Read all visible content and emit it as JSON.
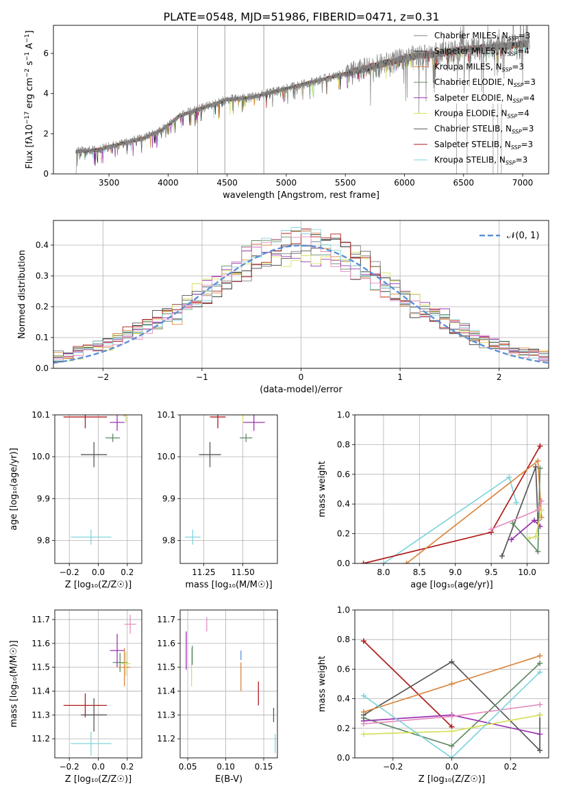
{
  "figure_title": "PLATE=0548, MJD=51986, FIBERID=0471, z=0.31",
  "colors": {
    "Chabrier MILES": "#7f7f7f",
    "Salpeter MILES": "#222222",
    "Kroupa MILES": "#d9843b",
    "Chabrier ELODIE": "#5f8a63",
    "Salpeter ELODIE": "#9b30b0",
    "Kroupa ELODIE": "#d6e05a",
    "Chabrier STELIB": "#555555",
    "Salpeter STELIB": "#b01818",
    "Kroupa STELIB": "#7fd4dc",
    "pink": "#e58cc0",
    "gaussian": "#5b8fd6"
  },
  "chart_data": [
    {
      "type": "line",
      "xlabel": "wavelength [Angstrom, rest frame]",
      "ylabel": "Flux [f$_\\lambda$10$^{-17}$ erg cm$^{-2}$ s$^{-1}$ A$^{-1}$]",
      "ylabel_text": "Flux [fλ10",
      "ylabel_sup1": "−17",
      "ylabel_mid": " erg cm",
      "ylabel_sup2": "−2",
      "ylabel_mid2": " s",
      "ylabel_sup3": "−1",
      "ylabel_mid3": " A",
      "ylabel_sup4": "−1",
      "ylabel_end": "]",
      "xlim": [
        3030,
        7220
      ],
      "ylim": [
        0,
        7.4
      ],
      "xticks": [
        "3500",
        "4000",
        "4500",
        "5000",
        "5500",
        "6000",
        "6500",
        "7000"
      ],
      "xtick_values": [
        3500,
        4000,
        4500,
        5000,
        5500,
        6000,
        6500,
        7000
      ],
      "yticks": [
        "0",
        "2",
        "4",
        "6"
      ],
      "ytick_values": [
        0,
        2,
        4,
        6
      ],
      "continuum_x": [
        3220,
        3400,
        3600,
        3800,
        3950,
        4100,
        4300,
        4500,
        4700,
        4900,
        5100,
        5300,
        5500,
        5700,
        5900,
        6100,
        6300,
        6500,
        6700,
        6900,
        7050
      ],
      "continuum_y": [
        1.1,
        1.2,
        1.5,
        1.8,
        2.2,
        2.9,
        3.3,
        3.7,
        3.8,
        4.1,
        4.4,
        4.7,
        5.0,
        5.3,
        5.6,
        5.9,
        6.0,
        6.2,
        6.3,
        6.4,
        6.5
      ],
      "spikes_x": [
        4250,
        4480,
        4810
      ],
      "legend": [
        {
          "label": "Chabrier MILES, N",
          "sub": "SSP",
          "end": "=3",
          "color": "#7f7f7f"
        },
        {
          "label": "Salpeter MILES, N",
          "sub": "SSP",
          "end": "=4",
          "color": "#222222"
        },
        {
          "label": "Kroupa MILES, N",
          "sub": "SSP",
          "end": "=3",
          "color": "#d9843b"
        },
        {
          "label": "Chabrier ELODIE, N",
          "sub": "SSP",
          "end": "=3",
          "color": "#5f8a63"
        },
        {
          "label": "Salpeter ELODIE, N",
          "sub": "SSP",
          "end": "=4",
          "color": "#9b30b0"
        },
        {
          "label": "Kroupa ELODIE, N",
          "sub": "SSP",
          "end": "=4",
          "color": "#d6e05a"
        },
        {
          "label": "Chabrier STELIB, N",
          "sub": "SSP",
          "end": "=3",
          "color": "#555555"
        },
        {
          "label": "Salpeter STELIB, N",
          "sub": "SSP",
          "end": "=3",
          "color": "#b01818"
        },
        {
          "label": "Kroupa STELIB, N",
          "sub": "SSP",
          "end": "=3",
          "color": "#7fd4dc"
        }
      ]
    },
    {
      "type": "histogram",
      "xlabel": "(data-model)/error",
      "ylabel": "Normed distribution",
      "xlim": [
        -2.5,
        2.5
      ],
      "ylim": [
        0,
        0.48
      ],
      "xticks": [
        "−2",
        "−1",
        "0",
        "1",
        "2"
      ],
      "xtick_values": [
        -2,
        -1,
        0,
        1,
        2
      ],
      "yticks": [
        "0.0",
        "0.1",
        "0.2",
        "0.3",
        "0.4"
      ],
      "ytick_values": [
        0,
        0.1,
        0.2,
        0.3,
        0.4
      ],
      "bin_width": 0.1,
      "legend_label": "𝒩(0, 1)",
      "series_colors": [
        "#7f7f7f",
        "#222222",
        "#d9843b",
        "#5f8a63",
        "#9b30b0",
        "#d6e05a",
        "#555555",
        "#b01818",
        "#7fd4dc",
        "#e58cc0"
      ]
    },
    {
      "type": "scatter",
      "xlabel": "Z [log₁₀(Z/Z☉)]",
      "ylabel": "age  [log₁₀(age/yr)]",
      "xlim": [
        -0.3,
        0.3
      ],
      "ylim": [
        9.745,
        10.1
      ],
      "xticks": [
        "−0.2",
        "0.0",
        "0.2"
      ],
      "xtick_values": [
        -0.2,
        0,
        0.2
      ],
      "yticks": [
        "9.8",
        "9.9",
        "10.0",
        "10.1"
      ],
      "ytick_values": [
        9.8,
        9.9,
        10.0,
        10.1
      ],
      "points": [
        {
          "x": -0.09,
          "y": 10.095,
          "xerr": 0.15,
          "yerr": 0.027,
          "color": "#b01818"
        },
        {
          "x": -0.03,
          "y": 10.005,
          "xerr": 0.09,
          "yerr": 0.03,
          "color": "#555555"
        },
        {
          "x": -0.05,
          "y": 9.808,
          "xerr": 0.14,
          "yerr": 0.018,
          "color": "#7fd4dc"
        },
        {
          "x": 0.1,
          "y": 10.045,
          "xerr": 0.05,
          "yerr": 0.01,
          "color": "#5f8a63"
        },
        {
          "x": 0.13,
          "y": 10.082,
          "xerr": 0.05,
          "yerr": 0.02,
          "color": "#9b30b0"
        },
        {
          "x": 0.18,
          "y": 10.116,
          "xerr": 0.04,
          "yerr": 0.02,
          "color": "#d9843b"
        },
        {
          "x": 0.19,
          "y": 10.1,
          "xerr": 0.03,
          "yerr": 0.02,
          "color": "#d6e05a"
        },
        {
          "x": 0.22,
          "y": 10.148,
          "xerr": 0.04,
          "yerr": 0.01,
          "color": "#e58cc0"
        }
      ]
    },
    {
      "type": "scatter",
      "xlabel": "mass [log₁₀(M/M☉)]",
      "ylabel": "",
      "xlim": [
        11.1,
        11.72
      ],
      "ylim": [
        9.745,
        10.1
      ],
      "xticks": [
        "11.25",
        "11.50"
      ],
      "xtick_values": [
        11.25,
        11.5
      ],
      "yticks": [
        "9.8",
        "9.9",
        "10.0",
        "10.1"
      ],
      "ytick_values": [
        9.8,
        9.9,
        10.0,
        10.1
      ],
      "points": [
        {
          "x": 11.34,
          "y": 10.095,
          "xerr": 0.05,
          "yerr": 0.027,
          "color": "#b01818"
        },
        {
          "x": 11.29,
          "y": 10.005,
          "xerr": 0.07,
          "yerr": 0.03,
          "color": "#555555"
        },
        {
          "x": 11.18,
          "y": 9.808,
          "xerr": 0.05,
          "yerr": 0.018,
          "color": "#7fd4dc"
        },
        {
          "x": 11.52,
          "y": 10.045,
          "xerr": 0.04,
          "yerr": 0.01,
          "color": "#5f8a63"
        },
        {
          "x": 11.57,
          "y": 10.082,
          "xerr": 0.07,
          "yerr": 0.02,
          "color": "#9b30b0"
        },
        {
          "x": 11.5,
          "y": 10.116,
          "xerr": 0.08,
          "yerr": 0.02,
          "color": "#d9843b"
        },
        {
          "x": 11.5,
          "y": 10.1,
          "xerr": 0.05,
          "yerr": 0.02,
          "color": "#d6e05a"
        },
        {
          "x": 11.68,
          "y": 10.148,
          "xerr": 0.04,
          "yerr": 0.01,
          "color": "#e58cc0"
        }
      ]
    },
    {
      "type": "line",
      "xlabel": "age  [log₁₀(age/yr)]",
      "ylabel": "mass weight",
      "xlim": [
        7.6,
        10.3
      ],
      "ylim": [
        0,
        1
      ],
      "xticks": [
        "8.0",
        "8.5",
        "9.0",
        "9.5",
        "10.0"
      ],
      "xtick_values": [
        8,
        8.5,
        9,
        9.5,
        10
      ],
      "yticks": [
        "0.0",
        "0.2",
        "0.4",
        "0.6",
        "0.8",
        "1.0"
      ],
      "ytick_values": [
        0,
        0.2,
        0.4,
        0.6,
        0.8,
        1.0
      ],
      "series": [
        {
          "color": "#7fd4dc",
          "x": [
            8.0,
            9.75,
            9.85
          ],
          "y": [
            0.0,
            0.58,
            0.41
          ]
        },
        {
          "color": "#b01818",
          "x": [
            7.72,
            9.5,
            10.18
          ],
          "y": [
            0.0,
            0.21,
            0.79
          ]
        },
        {
          "color": "#555555",
          "x": [
            9.65,
            10.12,
            10.15
          ],
          "y": [
            0.05,
            0.65,
            0.29
          ]
        },
        {
          "color": "#d9843b",
          "x": [
            8.32,
            10.15,
            10.2
          ],
          "y": [
            0.0,
            0.69,
            0.31
          ]
        },
        {
          "color": "#5f8a63",
          "x": [
            9.8,
            10.15,
            10.18
          ],
          "y": [
            0.27,
            0.08,
            0.64
          ]
        },
        {
          "color": "#9b30b0",
          "x": [
            9.78,
            10.1,
            10.18
          ],
          "y": [
            0.16,
            0.29,
            0.25
          ]
        },
        {
          "color": "#d6e05a",
          "x": [
            10.03,
            10.12,
            10.2
          ],
          "y": [
            0.17,
            0.18,
            0.36
          ]
        },
        {
          "color": "#e58cc0",
          "x": [
            9.5,
            10.15,
            10.2
          ],
          "y": [
            0.23,
            0.36,
            0.42
          ]
        }
      ]
    },
    {
      "type": "scatter",
      "xlabel": "Z [log₁₀(Z/Z☉)]",
      "ylabel": "mass [log₁₀(M/M☉)]",
      "xlim": [
        -0.3,
        0.3
      ],
      "ylim": [
        11.12,
        11.74
      ],
      "xticks": [
        "−0.2",
        "0.0",
        "0.2"
      ],
      "xtick_values": [
        -0.2,
        0,
        0.2
      ],
      "yticks": [
        "11.2",
        "11.3",
        "11.4",
        "11.5",
        "11.6",
        "11.7"
      ],
      "ytick_values": [
        11.2,
        11.3,
        11.4,
        11.5,
        11.6,
        11.7
      ],
      "points": [
        {
          "x": -0.09,
          "y": 11.34,
          "xerr": 0.15,
          "yerr": 0.05,
          "color": "#b01818"
        },
        {
          "x": -0.03,
          "y": 11.3,
          "xerr": 0.09,
          "yerr": 0.07,
          "color": "#555555"
        },
        {
          "x": -0.05,
          "y": 11.18,
          "xerr": 0.14,
          "yerr": 0.05,
          "color": "#7fd4dc"
        },
        {
          "x": 0.15,
          "y": 11.52,
          "xerr": 0.05,
          "yerr": 0.04,
          "color": "#5f8a63"
        },
        {
          "x": 0.13,
          "y": 11.57,
          "xerr": 0.05,
          "yerr": 0.07,
          "color": "#9b30b0"
        },
        {
          "x": 0.18,
          "y": 11.5,
          "xerr": 0.04,
          "yerr": 0.08,
          "color": "#d9843b"
        },
        {
          "x": 0.19,
          "y": 11.515,
          "xerr": 0.03,
          "yerr": 0.05,
          "color": "#d6e05a"
        },
        {
          "x": 0.22,
          "y": 11.68,
          "xerr": 0.04,
          "yerr": 0.04,
          "color": "#e58cc0"
        }
      ]
    },
    {
      "type": "scatter",
      "xlabel": "E(B-V)",
      "ylabel": "",
      "xlim": [
        0.04,
        0.168
      ],
      "ylim": [
        11.12,
        11.74
      ],
      "xticks": [
        "0.05",
        "0.10",
        "0.15"
      ],
      "xtick_values": [
        0.05,
        0.1,
        0.15
      ],
      "yticks": [
        "11.2",
        "11.3",
        "11.4",
        "11.5",
        "11.6",
        "11.7"
      ],
      "ytick_values": [
        11.2,
        11.3,
        11.4,
        11.5,
        11.6,
        11.7
      ],
      "points": [
        {
          "x": 0.048,
          "y": 11.57,
          "yerr": 0.08,
          "color": "#9b30b0"
        },
        {
          "x": 0.055,
          "y": 11.5,
          "yerr": 0.08,
          "color": "#d6e05a"
        },
        {
          "x": 0.056,
          "y": 11.55,
          "yerr": 0.04,
          "color": "#5f8a63"
        },
        {
          "x": 0.075,
          "y": 11.68,
          "yerr": 0.03,
          "color": "#e58cc0"
        },
        {
          "x": 0.12,
          "y": 11.46,
          "yerr": 0.06,
          "color": "#d9843b"
        },
        {
          "x": 0.12,
          "y": 11.55,
          "yerr": 0.02,
          "color": "#5b8fd6"
        },
        {
          "x": 0.143,
          "y": 11.39,
          "yerr": 0.05,
          "color": "#b01818"
        },
        {
          "x": 0.163,
          "y": 11.3,
          "yerr": 0.03,
          "color": "#555555"
        },
        {
          "x": 0.165,
          "y": 11.18,
          "yerr": 0.04,
          "color": "#7fd4dc"
        }
      ]
    },
    {
      "type": "line",
      "xlabel": "Z [log₁₀(Z/Z☉)]",
      "ylabel": "mass weight",
      "xlim": [
        -0.33,
        0.33
      ],
      "ylim": [
        0,
        1
      ],
      "xticks": [
        "−0.2",
        "0.0",
        "0.2"
      ],
      "xtick_values": [
        -0.2,
        0,
        0.2
      ],
      "yticks": [
        "0.0",
        "0.2",
        "0.4",
        "0.6",
        "0.8",
        "1.0"
      ],
      "ytick_values": [
        0,
        0.2,
        0.4,
        0.6,
        0.8,
        1.0
      ],
      "series": [
        {
          "color": "#b01818",
          "x": [
            -0.3,
            0.0
          ],
          "y": [
            0.79,
            0.21
          ]
        },
        {
          "color": "#555555",
          "x": [
            -0.3,
            0.0,
            0.3,
            0.3
          ],
          "y": [
            0.29,
            0.65,
            0.05,
            0.29
          ]
        },
        {
          "color": "#d9843b",
          "x": [
            -0.3,
            0.0,
            0.3
          ],
          "y": [
            0.31,
            0.5,
            0.69
          ]
        },
        {
          "color": "#5f8a63",
          "x": [
            -0.3,
            0.0,
            0.3
          ],
          "y": [
            0.27,
            0.08,
            0.64
          ]
        },
        {
          "color": "#9b30b0",
          "x": [
            -0.3,
            0.0,
            0.3
          ],
          "y": [
            0.25,
            0.29,
            0.16
          ]
        },
        {
          "color": "#d6e05a",
          "x": [
            -0.3,
            0.0,
            0.3
          ],
          "y": [
            0.16,
            0.18,
            0.29
          ]
        },
        {
          "color": "#e58cc0",
          "x": [
            -0.3,
            0.0,
            0.3
          ],
          "y": [
            0.23,
            0.28,
            0.36
          ]
        },
        {
          "color": "#7fd4dc",
          "x": [
            -0.3,
            0.0,
            0.3
          ],
          "y": [
            0.42,
            0.0,
            0.58
          ]
        }
      ]
    }
  ]
}
